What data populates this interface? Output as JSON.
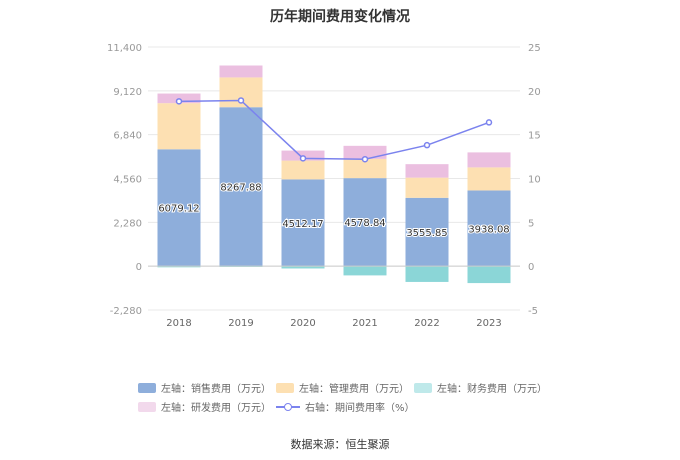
{
  "title": "历年期间费用变化情况",
  "source": "数据来源：恒生聚源",
  "colors": {
    "sales": "#8eaedb",
    "admin": "#fde0b2",
    "finance": "#8bd6d7",
    "rnd": "#ebbfe0",
    "rate": "#7b83ee",
    "axis_text": "#999999",
    "grid": "#e8e8e8"
  },
  "chart_data": {
    "type": "bar",
    "title": "历年期间费用变化情况",
    "categories": [
      "2018",
      "2019",
      "2020",
      "2021",
      "2022",
      "2023"
    ],
    "left_axis": {
      "min": -2280,
      "max": 11400,
      "ticks": [
        "-2,280",
        "0",
        "2,280",
        "4,560",
        "6,840",
        "9,120",
        "11,400"
      ]
    },
    "right_axis": {
      "min": -5,
      "max": 25,
      "ticks": [
        "-5",
        "0",
        "5",
        "10",
        "15",
        "20",
        "25"
      ]
    },
    "series": [
      {
        "key": "sales",
        "name": "左轴：销售费用（万元）",
        "values": [
          6079.12,
          8267.88,
          4512.17,
          4578.84,
          3555.85,
          3938.08
        ],
        "labels": [
          "6079.12",
          "8267.88",
          "4512.17",
          "4578.84",
          "3555.85",
          "3938.08"
        ]
      },
      {
        "key": "admin",
        "name": "左轴：管理费用（万元）",
        "values": [
          2400,
          1550,
          980,
          1000,
          1050,
          1200
        ]
      },
      {
        "key": "finance",
        "name": "左轴：财务费用（万元）",
        "values": [
          -60,
          -40,
          -120,
          -480,
          -820,
          -880
        ]
      },
      {
        "key": "rnd",
        "name": "左轴：研发费用（万元）",
        "values": [
          500,
          620,
          520,
          680,
          700,
          780
        ]
      },
      {
        "key": "rate",
        "name": "右轴：期间费用率（%）",
        "type": "line",
        "values": [
          18.8,
          18.9,
          12.3,
          12.2,
          13.8,
          16.4
        ]
      }
    ],
    "legend_position": "bottom"
  }
}
